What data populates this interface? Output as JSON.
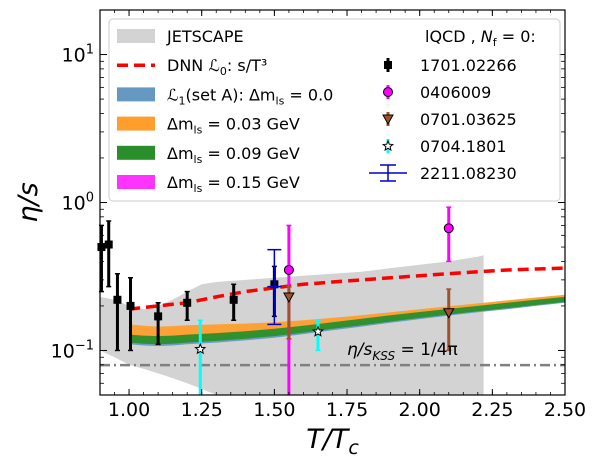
{
  "chart_data": {
    "type": "line",
    "xlabel": "T/T_c",
    "ylabel": "η/s",
    "xlim": [
      0.9,
      2.5
    ],
    "ylim": [
      0.05,
      20
    ],
    "yscale": "log",
    "grid": false,
    "legend_placement": "top",
    "x_ticks": [
      {
        "value": 1.0,
        "label": "1.00"
      },
      {
        "value": 1.25,
        "label": "1.25"
      },
      {
        "value": 1.5,
        "label": "1.50"
      },
      {
        "value": 1.75,
        "label": "1.75"
      },
      {
        "value": 2.0,
        "label": "2.00"
      },
      {
        "value": 2.25,
        "label": "2.25"
      },
      {
        "value": 2.5,
        "label": "2.50"
      }
    ],
    "y_ticks": [
      {
        "value": 0.1,
        "label": "10^-1",
        "base": "10",
        "exp": "−1"
      },
      {
        "value": 1,
        "label": "10^0",
        "base": "10",
        "exp": "0"
      },
      {
        "value": 10,
        "label": "10^1",
        "base": "10",
        "exp": "1"
      }
    ],
    "annotation": {
      "text": "η/s_KSS = 1/4π",
      "main": "η/s",
      "sub": "KSS",
      "rest": " = 1/4π",
      "x": 1.75,
      "y": 0.093
    },
    "kss_line": {
      "value": 0.0796,
      "color": "#808080"
    },
    "jetscape_band": {
      "name": "JETSCAPE",
      "color": "#d3d3d3",
      "x": [
        0.9,
        0.95,
        1.0,
        1.05,
        1.1,
        1.15,
        1.2,
        1.25,
        1.3,
        1.4,
        1.5,
        1.6,
        1.7,
        1.8,
        1.9,
        2.0,
        2.1,
        2.2,
        2.22
      ],
      "upper": [
        0.23,
        0.22,
        0.2,
        0.19,
        0.2,
        0.22,
        0.25,
        0.28,
        0.29,
        0.3,
        0.31,
        0.32,
        0.33,
        0.34,
        0.36,
        0.38,
        0.4,
        0.43,
        0.44
      ],
      "lower": [
        0.1,
        0.09,
        0.08,
        0.075,
        0.07,
        0.065,
        0.06,
        0.055,
        0.05,
        0.05,
        0.05,
        0.05,
        0.05,
        0.05,
        0.05,
        0.05,
        0.05,
        0.05,
        0.05
      ]
    },
    "dnn_line": {
      "name": "DNN L0: s/T^3",
      "color": "#ff0000",
      "x": [
        1.0,
        1.05,
        1.1,
        1.15,
        1.2,
        1.25,
        1.3,
        1.35,
        1.4,
        1.5,
        1.6,
        1.7,
        1.8,
        1.9,
        2.0,
        2.1,
        2.2,
        2.3,
        2.4,
        2.5
      ],
      "y": [
        0.19,
        0.195,
        0.2,
        0.205,
        0.21,
        0.22,
        0.23,
        0.24,
        0.25,
        0.265,
        0.28,
        0.29,
        0.3,
        0.31,
        0.32,
        0.33,
        0.34,
        0.35,
        0.355,
        0.36
      ]
    },
    "bands": [
      {
        "name": "L1(set A): Δm_ls = 0.0",
        "color": "#6699c2",
        "x": [
          1.0,
          1.05,
          1.1,
          1.15,
          1.2,
          1.3,
          1.4,
          1.5,
          1.6,
          1.7,
          1.8,
          1.9,
          2.0,
          2.1,
          2.2,
          2.3,
          2.4,
          2.5
        ],
        "upper": [
          0.12,
          0.118,
          0.117,
          0.118,
          0.12,
          0.123,
          0.127,
          0.132,
          0.14,
          0.148,
          0.157,
          0.167,
          0.176,
          0.186,
          0.195,
          0.205,
          0.215,
          0.225
        ],
        "lower": [
          0.11,
          0.108,
          0.107,
          0.108,
          0.11,
          0.113,
          0.117,
          0.122,
          0.129,
          0.137,
          0.145,
          0.154,
          0.163,
          0.172,
          0.181,
          0.19,
          0.2,
          0.21
        ]
      },
      {
        "name": "Δm_ls = 0.03 GeV",
        "color": "#ff9d2d",
        "x": [
          1.0,
          1.05,
          1.1,
          1.15,
          1.2,
          1.3,
          1.4,
          1.5,
          1.6,
          1.7,
          1.8,
          1.9,
          2.0,
          2.1,
          2.2,
          2.3,
          2.4,
          2.5
        ],
        "upper": [
          0.15,
          0.147,
          0.145,
          0.146,
          0.148,
          0.15,
          0.152,
          0.155,
          0.16,
          0.166,
          0.173,
          0.181,
          0.19,
          0.199,
          0.208,
          0.218,
          0.228,
          0.238
        ],
        "lower": [
          0.12,
          0.118,
          0.117,
          0.118,
          0.12,
          0.123,
          0.127,
          0.132,
          0.139,
          0.147,
          0.155,
          0.164,
          0.173,
          0.182,
          0.191,
          0.2,
          0.21,
          0.22
        ]
      },
      {
        "name": "Δm_ls = 0.09 GeV",
        "color": "#2a8f2a",
        "x": [
          1.0,
          1.05,
          1.1,
          1.15,
          1.2,
          1.3,
          1.4,
          1.5,
          1.6,
          1.7,
          1.8,
          1.9,
          2.0,
          2.1,
          2.2,
          2.3,
          2.4,
          2.5
        ],
        "upper": [
          0.128,
          0.126,
          0.125,
          0.126,
          0.128,
          0.131,
          0.135,
          0.14,
          0.147,
          0.155,
          0.164,
          0.173,
          0.182,
          0.191,
          0.2,
          0.21,
          0.22,
          0.23
        ],
        "lower": [
          0.113,
          0.111,
          0.11,
          0.111,
          0.113,
          0.116,
          0.12,
          0.125,
          0.132,
          0.14,
          0.148,
          0.157,
          0.166,
          0.175,
          0.184,
          0.193,
          0.203,
          0.213
        ]
      },
      {
        "name": "Δm_ls = 0.15 GeV",
        "color": "#ff33ff",
        "x": [],
        "upper": [],
        "lower": []
      }
    ],
    "legend_left": [
      {
        "kind": "patch",
        "color": "#d3d3d3",
        "label": "JETSCAPE"
      },
      {
        "kind": "dash",
        "color": "#ff0000",
        "label": "DNN ℒ0: s/T³",
        "prefix": "DNN ",
        "math": "ℒ",
        "sub": "0",
        "suffix": ": s/T³"
      },
      {
        "kind": "patch",
        "color": "#6699c2",
        "label": "ℒ1(set A): Δm_ls = 0.0",
        "prefix": "",
        "math": "ℒ",
        "sub": "1",
        "suffix": "(set A): Δm",
        "sub2": "ls",
        "suffix2": " = 0.0"
      },
      {
        "kind": "patch",
        "color": "#ff9d2d",
        "label": "Δm_ls = 0.03 GeV",
        "prefix": "Δm",
        "sub": "ls",
        "suffix": " = 0.03 GeV"
      },
      {
        "kind": "patch",
        "color": "#2a8f2a",
        "label": "Δm_ls = 0.09 GeV",
        "prefix": "Δm",
        "sub": "ls",
        "suffix": " = 0.09 GeV"
      },
      {
        "kind": "patch",
        "color": "#ff33ff",
        "label": "Δm_ls = 0.15 GeV",
        "prefix": "Δm",
        "sub": "ls",
        "suffix": " = 0.15 GeV"
      }
    ],
    "legend_right_title": {
      "text": "lQCD , N_f = 0:",
      "prefix": "lQCD , ",
      "main": "N",
      "sub": "f",
      "suffix": " = 0:"
    },
    "points": [
      {
        "name": "1701.02266",
        "color": "#000000",
        "marker": "square",
        "data": [
          {
            "x": 0.905,
            "y": 0.5,
            "lo": 0.25,
            "hi": 0.7
          },
          {
            "x": 0.93,
            "y": 0.52,
            "lo": 0.27,
            "hi": 0.75
          },
          {
            "x": 0.96,
            "y": 0.22,
            "lo": 0.1,
            "hi": 0.33
          },
          {
            "x": 1.005,
            "y": 0.2,
            "lo": 0.1,
            "hi": 0.31
          },
          {
            "x": 1.1,
            "y": 0.17,
            "lo": 0.11,
            "hi": 0.21
          },
          {
            "x": 1.2,
            "y": 0.21,
            "lo": 0.16,
            "hi": 0.25
          },
          {
            "x": 1.36,
            "y": 0.22,
            "lo": 0.16,
            "hi": 0.28
          },
          {
            "x": 1.5,
            "y": 0.28,
            "lo": 0.17,
            "hi": 0.37
          }
        ]
      },
      {
        "name": "0406009",
        "color": "#ff00ff",
        "marker": "circle",
        "data": [
          {
            "x": 1.55,
            "y": 0.35,
            "lo": 0.05,
            "hi": 0.7
          },
          {
            "x": 2.1,
            "y": 0.67,
            "lo": 0.4,
            "hi": 0.93
          }
        ]
      },
      {
        "name": "0701.03625",
        "color": "#a0522d",
        "marker": "triangle-down",
        "data": [
          {
            "x": 1.55,
            "y": 0.23,
            "lo": 0.12,
            "hi": 0.27
          },
          {
            "x": 2.1,
            "y": 0.18,
            "lo": 0.1,
            "hi": 0.26
          }
        ]
      },
      {
        "name": "0704.1801",
        "color": "#00ffff",
        "marker": "star",
        "data": [
          {
            "x": 1.245,
            "y": 0.102,
            "lo": 0.05,
            "hi": 0.16
          },
          {
            "x": 1.65,
            "y": 0.134,
            "lo": 0.1,
            "hi": 0.16
          }
        ]
      },
      {
        "name": "2211.08230",
        "color": "#0000cc",
        "marker": "none",
        "data": [
          {
            "x": 1.5,
            "y": 0.27,
            "lo": 0.15,
            "hi": 0.48
          }
        ]
      }
    ]
  }
}
